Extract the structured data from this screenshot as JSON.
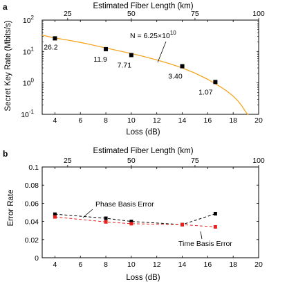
{
  "chart_data": [
    {
      "panel_label": "a",
      "type": "line",
      "xlabel": "Loss (dB)",
      "ylabel": "Secret Key Rate (Mbits/s)",
      "top_xlabel": "Estimated Fiber Length (km)",
      "xlim": [
        3,
        20
      ],
      "ylim": [
        0.1,
        100
      ],
      "yscale": "log",
      "xticks": [
        "4",
        "6",
        "8",
        "10",
        "12",
        "14",
        "16",
        "18",
        "20"
      ],
      "yticks": [
        {
          "value": 0.1,
          "base": "10",
          "exp": "-1"
        },
        {
          "value": 1,
          "base": "10",
          "exp": "0"
        },
        {
          "value": 10,
          "base": "10",
          "exp": "1"
        },
        {
          "value": 100,
          "base": "10",
          "exp": "2"
        }
      ],
      "top_ticks": [
        {
          "label": "25",
          "loss": 5.0
        },
        {
          "label": "50",
          "loss": 10.0
        },
        {
          "label": "75",
          "loss": 15.0
        },
        {
          "label": "100",
          "loss": 20.0
        }
      ],
      "series": [
        {
          "kind": "markers",
          "color": "#000000",
          "x": [
            4,
            8,
            10,
            14,
            16.6
          ],
          "y": [
            26.2,
            11.9,
            7.71,
            3.4,
            1.07
          ],
          "labels": [
            "26.2",
            "11.9",
            "7.71",
            "3.40",
            "1.07"
          ]
        },
        {
          "kind": "curve",
          "color": "#f5a623",
          "x": [
            3.0,
            4,
            5,
            6,
            7,
            8,
            9,
            10,
            11,
            12,
            13,
            14,
            15,
            16,
            17,
            17.5,
            18,
            18.4,
            18.7,
            18.9,
            19.05,
            19.15,
            19.2
          ],
          "y": [
            33,
            27,
            23,
            19.5,
            16,
            13,
            10.6,
            8.6,
            6.9,
            5.4,
            4.1,
            3.0,
            2.05,
            1.3,
            0.75,
            0.55,
            0.38,
            0.26,
            0.18,
            0.135,
            0.11,
            0.1,
            0.095
          ]
        }
      ],
      "annotation": {
        "prefix": "N = 6.25",
        "times": "×",
        "base": "10",
        "exp": "10"
      }
    },
    {
      "panel_label": "b",
      "type": "line",
      "xlabel": "Loss (dB)",
      "ylabel": "Error Rate",
      "top_xlabel": "Estimated Fiber Length (km)",
      "xlim": [
        3,
        20
      ],
      "ylim": [
        0,
        0.1
      ],
      "xticks": [
        "4",
        "6",
        "8",
        "10",
        "12",
        "14",
        "16",
        "18",
        "20"
      ],
      "yticks": [
        "0",
        "0.02",
        "0.04",
        "0.06",
        "0.08",
        "0.1"
      ],
      "top_ticks": [
        {
          "label": "25",
          "loss": 5.0
        },
        {
          "label": "50",
          "loss": 10.0
        },
        {
          "label": "75",
          "loss": 15.0
        },
        {
          "label": "100",
          "loss": 20.0
        }
      ],
      "series": [
        {
          "name": "Phase Basis Error",
          "color": "#000000",
          "x": [
            4,
            8,
            10,
            14,
            16.6
          ],
          "y": [
            0.048,
            0.0435,
            0.04,
            0.0365,
            0.0485
          ]
        },
        {
          "name": "Time Basis Error",
          "color": "#e8211f",
          "x": [
            4,
            8,
            10,
            14,
            16.6
          ],
          "y": [
            0.045,
            0.0395,
            0.0375,
            0.0365,
            0.034
          ]
        }
      ]
    }
  ]
}
